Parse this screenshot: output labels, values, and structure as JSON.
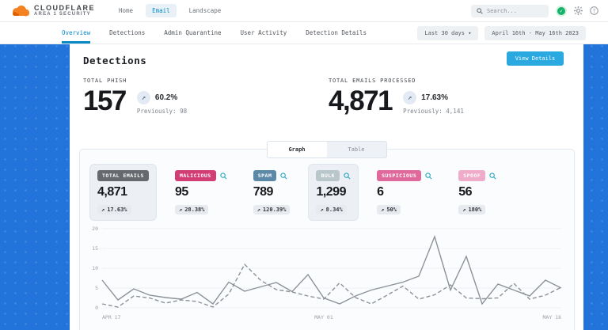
{
  "icons": {
    "trend_up": "↗",
    "chevron_down": "▾",
    "check": "✓",
    "help": "?"
  },
  "colors": {
    "page_background": "#2374da",
    "accent_blue": "#0889c6",
    "button_cyan": "#29a9e0",
    "chart_line": "#8c9299"
  },
  "topnav": {
    "brand_name": "CLOUDFLARE",
    "brand_sub": "AREA 1 SECURITY",
    "items": [
      {
        "label": "Home",
        "active": false
      },
      {
        "label": "Email",
        "active": true
      },
      {
        "label": "Landscape",
        "active": false
      }
    ],
    "search_placeholder": "Search..."
  },
  "subnav": {
    "tabs": [
      {
        "label": "Overview",
        "active": true
      },
      {
        "label": "Detections",
        "active": false
      },
      {
        "label": "Admin Quarantine",
        "active": false
      },
      {
        "label": "User Activity",
        "active": false
      },
      {
        "label": "Detection Details",
        "active": false
      }
    ],
    "period_dropdown": "Last 30 days",
    "date_range": "April 16th - May 16th 2023"
  },
  "detections": {
    "title": "Detections",
    "view_details_label": "View Details",
    "totals": [
      {
        "label": "TOTAL PHISH",
        "value": "157",
        "change": "60.2%",
        "previously": "Previously: 98"
      },
      {
        "label": "TOTAL EMAILS PROCESSED",
        "value": "4,871",
        "change": "17.63%",
        "previously": "Previously: 4,141"
      }
    ]
  },
  "graph_section": {
    "view_tabs": [
      {
        "label": "Graph",
        "active": true
      },
      {
        "label": "Table",
        "active": false
      }
    ],
    "stats": [
      {
        "label": "TOTAL EMAILS",
        "value": "4,871",
        "change": "17.63%",
        "badge_color": "#66696e",
        "badge_text_color": "#ffffff",
        "selected": true,
        "has_zoom": false
      },
      {
        "label": "MALICIOUS",
        "value": "95",
        "change": "28.38%",
        "badge_color": "#d23e74",
        "badge_text_color": "#ffffff",
        "selected": false,
        "has_zoom": true
      },
      {
        "label": "SPAM",
        "value": "789",
        "change": "120.39%",
        "badge_color": "#5d89a8",
        "badge_text_color": "#ffffff",
        "selected": false,
        "has_zoom": true
      },
      {
        "label": "BULK",
        "value": "1,299",
        "change": "8.34%",
        "badge_color": "#b9c7ca",
        "badge_text_color": "#ffffff",
        "selected": true,
        "has_zoom": true
      },
      {
        "label": "SUSPICIOUS",
        "value": "6",
        "change": "50%",
        "badge_color": "#e0699b",
        "badge_text_color": "#ffffff",
        "selected": false,
        "has_zoom": true
      },
      {
        "label": "SPOOF",
        "value": "56",
        "change": "180%",
        "badge_color": "#efabc9",
        "badge_text_color": "#ffffff",
        "selected": false,
        "has_zoom": true
      }
    ]
  },
  "chart_data": {
    "type": "line",
    "x_range_labels": [
      {
        "index": 0,
        "label": "APR 17"
      },
      {
        "index": 14,
        "label": "MAY 01"
      },
      {
        "index": 29,
        "label": "MAY 16"
      }
    ],
    "ylim": [
      0,
      20
    ],
    "yticks": [
      0,
      5,
      10,
      15,
      20
    ],
    "grid": true,
    "legend": false,
    "series": [
      {
        "name": "Total Emails",
        "style": "solid",
        "values": [
          7,
          2,
          4.8,
          3.2,
          2.6,
          2.2,
          3.9,
          1,
          6.5,
          4.2,
          5.3,
          6.4,
          4.1,
          8.4,
          2.5,
          1,
          3,
          4.5,
          5.5,
          6.5,
          8,
          18,
          4.5,
          13,
          1,
          6,
          4.5,
          3,
          7,
          5
        ]
      },
      {
        "name": "Bulk",
        "style": "dashed",
        "values": [
          1,
          0.2,
          3,
          2.5,
          1.2,
          2,
          1.6,
          0.2,
          3.5,
          11,
          7,
          4.6,
          4,
          3,
          2.2,
          6.3,
          2.6,
          1,
          3.2,
          5.5,
          2.2,
          3.3,
          5.8,
          2.5,
          2.3,
          2.5,
          6.2,
          2.2,
          3.2,
          5.2
        ]
      }
    ]
  }
}
